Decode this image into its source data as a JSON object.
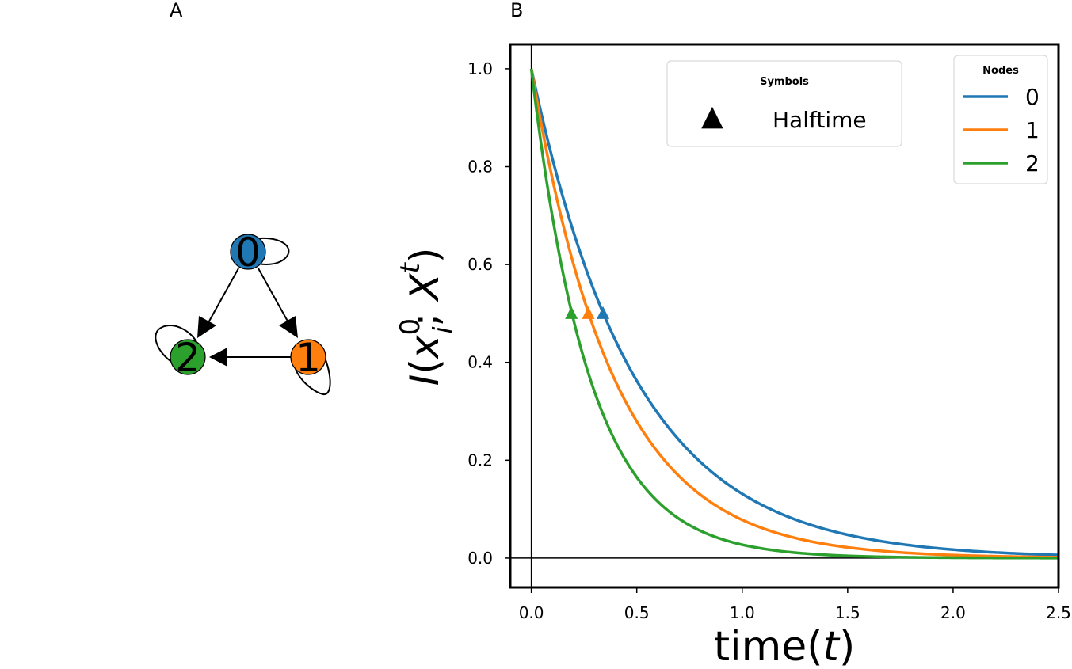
{
  "panels": {
    "a": "A",
    "b": "B"
  },
  "network": {
    "nodes": [
      {
        "id": "0",
        "color": "#1f77b4"
      },
      {
        "id": "1",
        "color": "#ff7f0e"
      },
      {
        "id": "2",
        "color": "#2ca02c"
      }
    ],
    "edges": [
      [
        "0",
        "1"
      ],
      [
        "0",
        "2"
      ],
      [
        "1",
        "2"
      ]
    ],
    "self_loops": [
      "0",
      "1",
      "2"
    ]
  },
  "chart_data": {
    "type": "line",
    "xlabel_main": "time",
    "xlabel_var": "t",
    "ylabel_parts": {
      "I": "I",
      "open": "(",
      "x": "x",
      "sup0": "0",
      "subi": "i",
      "sep": "; ",
      "X": "X",
      "supt": "t",
      "close": ")"
    },
    "xlim": [
      -0.1,
      2.5
    ],
    "ylim": [
      -0.06,
      1.05
    ],
    "xticks": [
      "0.0",
      "0.5",
      "1.0",
      "1.5",
      "2.0",
      "2.5"
    ],
    "xtick_values": [
      0.0,
      0.5,
      1.0,
      1.5,
      2.0,
      2.5
    ],
    "yticks": [
      "0.0",
      "0.2",
      "0.4",
      "0.6",
      "0.8",
      "1.0"
    ],
    "ytick_values": [
      0.0,
      0.2,
      0.4,
      0.6,
      0.8,
      1.0
    ],
    "reference_lines": {
      "x": 0,
      "y": 0
    },
    "series": [
      {
        "name": "0",
        "color": "#1f77b4",
        "decay_rate": 2.03,
        "halftime": 0.34
      },
      {
        "name": "1",
        "color": "#ff7f0e",
        "decay_rate": 2.55,
        "halftime": 0.27
      },
      {
        "name": "2",
        "color": "#2ca02c",
        "decay_rate": 3.6,
        "halftime": 0.19
      }
    ],
    "legend_nodes": {
      "title": "Nodes",
      "placement": "top-right"
    },
    "legend_symbols": {
      "title": "Symbols",
      "marker": "▲",
      "label": "Halftime",
      "placement": "top-center"
    }
  }
}
